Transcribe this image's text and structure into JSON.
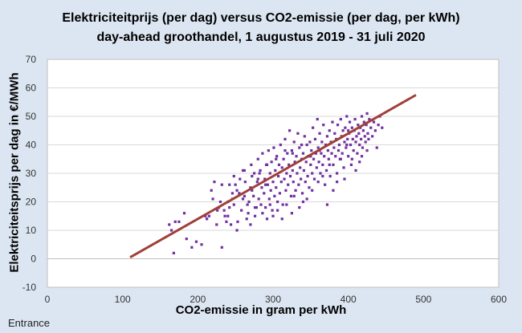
{
  "chart_data": {
    "type": "scatter",
    "title": "Elektriciteitprijs (per dag) versus CO2-emissie (per dag, per kWh)",
    "subtitle": "day-ahead groothandel, 1 augustus 2019 - 31 juli 2020",
    "xlabel": "CO2-emissie in gram per kWh",
    "ylabel": "Elektriciteitsprijs per dag in €/MWh",
    "xlim": [
      0,
      600
    ],
    "ylim": [
      -10,
      70
    ],
    "x_ticks": [
      "0",
      "100",
      "200",
      "300",
      "400",
      "500",
      "600"
    ],
    "y_ticks": [
      "-10",
      "0",
      "10",
      "20",
      "30",
      "40",
      "50",
      "60",
      "70"
    ],
    "grid": "horizontal",
    "legend": "none",
    "colors": {
      "points": "#7030a0",
      "trendline": "#a0403a",
      "background": "#dce6f2",
      "plot_area": "#ffffff"
    },
    "trendline": {
      "x": [
        110,
        490
      ],
      "y": [
        0.5,
        57.5
      ]
    },
    "series": [
      {
        "points": [
          [
            162,
            12
          ],
          [
            165,
            10
          ],
          [
            168,
            2
          ],
          [
            170,
            13
          ],
          [
            175,
            13
          ],
          [
            182,
            16
          ],
          [
            185,
            7
          ],
          [
            192,
            4
          ],
          [
            198,
            6
          ],
          [
            205,
            5
          ],
          [
            210,
            15
          ],
          [
            215,
            15
          ],
          [
            218,
            24
          ],
          [
            220,
            21
          ],
          [
            222,
            27
          ],
          [
            225,
            12
          ],
          [
            228,
            18
          ],
          [
            232,
            4
          ],
          [
            235,
            17
          ],
          [
            238,
            13
          ],
          [
            240,
            20
          ],
          [
            242,
            18
          ],
          [
            244,
            12
          ],
          [
            246,
            23
          ],
          [
            248,
            29
          ],
          [
            250,
            26
          ],
          [
            252,
            10
          ],
          [
            253,
            13
          ],
          [
            255,
            23
          ],
          [
            258,
            17
          ],
          [
            260,
            31
          ],
          [
            262,
            22
          ],
          [
            263,
            27
          ],
          [
            265,
            14
          ],
          [
            267,
            16
          ],
          [
            268,
            20
          ],
          [
            270,
            25
          ],
          [
            271,
            33
          ],
          [
            272,
            24
          ],
          [
            274,
            22
          ],
          [
            275,
            30
          ],
          [
            276,
            15
          ],
          [
            278,
            18
          ],
          [
            279,
            27
          ],
          [
            280,
            35
          ],
          [
            281,
            21
          ],
          [
            283,
            31
          ],
          [
            284,
            19
          ],
          [
            285,
            25
          ],
          [
            286,
            37
          ],
          [
            288,
            23
          ],
          [
            289,
            28
          ],
          [
            290,
            18
          ],
          [
            291,
            33
          ],
          [
            292,
            14
          ],
          [
            293,
            26
          ],
          [
            294,
            38
          ],
          [
            295,
            21
          ],
          [
            296,
            30
          ],
          [
            297,
            24
          ],
          [
            298,
            34
          ],
          [
            299,
            17
          ],
          [
            300,
            27
          ],
          [
            301,
            39
          ],
          [
            302,
            22
          ],
          [
            303,
            31
          ],
          [
            304,
            25
          ],
          [
            305,
            36
          ],
          [
            306,
            20
          ],
          [
            307,
            29
          ],
          [
            308,
            33
          ],
          [
            309,
            23
          ],
          [
            310,
            40
          ],
          [
            311,
            27
          ],
          [
            312,
            32
          ],
          [
            313,
            19
          ],
          [
            314,
            35
          ],
          [
            315,
            28
          ],
          [
            316,
            42
          ],
          [
            317,
            24
          ],
          [
            318,
            30
          ],
          [
            319,
            37
          ],
          [
            320,
            26
          ],
          [
            321,
            33
          ],
          [
            322,
            45
          ],
          [
            323,
            29
          ],
          [
            324,
            22
          ],
          [
            325,
            38
          ],
          [
            326,
            31
          ],
          [
            327,
            27
          ],
          [
            328,
            41
          ],
          [
            329,
            34
          ],
          [
            330,
            24
          ],
          [
            331,
            36
          ],
          [
            332,
            30
          ],
          [
            333,
            44
          ],
          [
            334,
            26
          ],
          [
            335,
            39
          ],
          [
            336,
            32
          ],
          [
            337,
            28
          ],
          [
            338,
            35
          ],
          [
            339,
            23
          ],
          [
            340,
            37
          ],
          [
            341,
            31
          ],
          [
            342,
            43
          ],
          [
            343,
            27
          ],
          [
            344,
            34
          ],
          [
            345,
            40
          ],
          [
            346,
            29
          ],
          [
            347,
            36
          ],
          [
            348,
            25
          ],
          [
            349,
            41
          ],
          [
            350,
            33
          ],
          [
            351,
            38
          ],
          [
            352,
            30
          ],
          [
            353,
            46
          ],
          [
            354,
            35
          ],
          [
            355,
            28
          ],
          [
            356,
            42
          ],
          [
            357,
            37
          ],
          [
            358,
            32
          ],
          [
            359,
            49
          ],
          [
            360,
            39
          ],
          [
            361,
            34
          ],
          [
            362,
            44
          ],
          [
            363,
            30
          ],
          [
            364,
            37
          ],
          [
            365,
            41
          ],
          [
            366,
            33
          ],
          [
            367,
            47
          ],
          [
            368,
            36
          ],
          [
            369,
            26
          ],
          [
            370,
            40
          ],
          [
            371,
            31
          ],
          [
            372,
            43
          ],
          [
            373,
            38
          ],
          [
            374,
            35
          ],
          [
            375,
            45
          ],
          [
            376,
            29
          ],
          [
            377,
            41
          ],
          [
            378,
            37
          ],
          [
            379,
            48
          ],
          [
            380,
            33
          ],
          [
            381,
            39
          ],
          [
            382,
            44
          ],
          [
            383,
            36
          ],
          [
            384,
            42
          ],
          [
            385,
            30
          ],
          [
            386,
            47
          ],
          [
            387,
            38
          ],
          [
            388,
            40
          ],
          [
            389,
            35
          ],
          [
            390,
            49
          ],
          [
            391,
            43
          ],
          [
            392,
            37
          ],
          [
            393,
            45
          ],
          [
            394,
            32
          ],
          [
            395,
            41
          ],
          [
            396,
            46
          ],
          [
            397,
            39
          ],
          [
            398,
            50
          ],
          [
            399,
            42
          ],
          [
            400,
            36
          ],
          [
            401,
            44
          ],
          [
            402,
            48
          ],
          [
            403,
            40
          ],
          [
            404,
            33
          ],
          [
            405,
            46
          ],
          [
            406,
            42
          ],
          [
            407,
            38
          ],
          [
            408,
            45
          ],
          [
            409,
            49
          ],
          [
            410,
            41
          ],
          [
            411,
            43
          ],
          [
            412,
            37
          ],
          [
            413,
            47
          ],
          [
            414,
            44
          ],
          [
            415,
            40
          ],
          [
            416,
            46
          ],
          [
            417,
            42
          ],
          [
            418,
            50
          ],
          [
            419,
            39
          ],
          [
            420,
            45
          ],
          [
            421,
            48
          ],
          [
            422,
            43
          ],
          [
            423,
            41
          ],
          [
            424,
            47
          ],
          [
            425,
            51
          ],
          [
            426,
            44
          ],
          [
            427,
            42
          ],
          [
            428,
            49
          ],
          [
            430,
            46
          ],
          [
            432,
            43
          ],
          [
            434,
            48
          ],
          [
            436,
            45
          ],
          [
            438,
            39
          ],
          [
            440,
            47
          ],
          [
            442,
            50
          ],
          [
            445,
            46
          ],
          [
            418,
            36
          ],
          [
            395,
            28
          ],
          [
            380,
            24
          ],
          [
            372,
            19
          ],
          [
            360,
            27
          ],
          [
            345,
            21
          ],
          [
            335,
            18
          ],
          [
            325,
            16
          ],
          [
            312,
            14
          ],
          [
            300,
            15
          ],
          [
            290,
            26
          ],
          [
            280,
            28
          ],
          [
            270,
            12
          ],
          [
            260,
            21
          ],
          [
            248,
            19
          ],
          [
            240,
            15
          ],
          [
            230,
            20
          ],
          [
            410,
            31
          ],
          [
            405,
            35
          ],
          [
            398,
            40
          ],
          [
            385,
            27
          ],
          [
            366,
            29
          ],
          [
            352,
            24
          ],
          [
            340,
            20
          ],
          [
            328,
            22
          ],
          [
            318,
            19
          ],
          [
            306,
            17
          ],
          [
            296,
            19
          ],
          [
            286,
            16
          ],
          [
            276,
            18
          ],
          [
            266,
            19
          ],
          [
            256,
            28
          ],
          [
            246,
            21
          ],
          [
            236,
            15
          ],
          [
            226,
            17
          ],
          [
            425,
            38
          ],
          [
            415,
            34
          ],
          [
            400,
            45
          ],
          [
            390,
            35
          ],
          [
            375,
            33
          ],
          [
            362,
            38
          ],
          [
            350,
            36
          ],
          [
            338,
            40
          ],
          [
            326,
            37
          ],
          [
            316,
            38
          ],
          [
            304,
            35
          ],
          [
            292,
            33
          ],
          [
            282,
            30
          ],
          [
            272,
            29
          ],
          [
            262,
            31
          ],
          [
            252,
            24
          ],
          [
            242,
            26
          ],
          [
            212,
            14
          ],
          [
            232,
            26
          ]
        ]
      }
    ]
  },
  "watermark": "Entrance"
}
